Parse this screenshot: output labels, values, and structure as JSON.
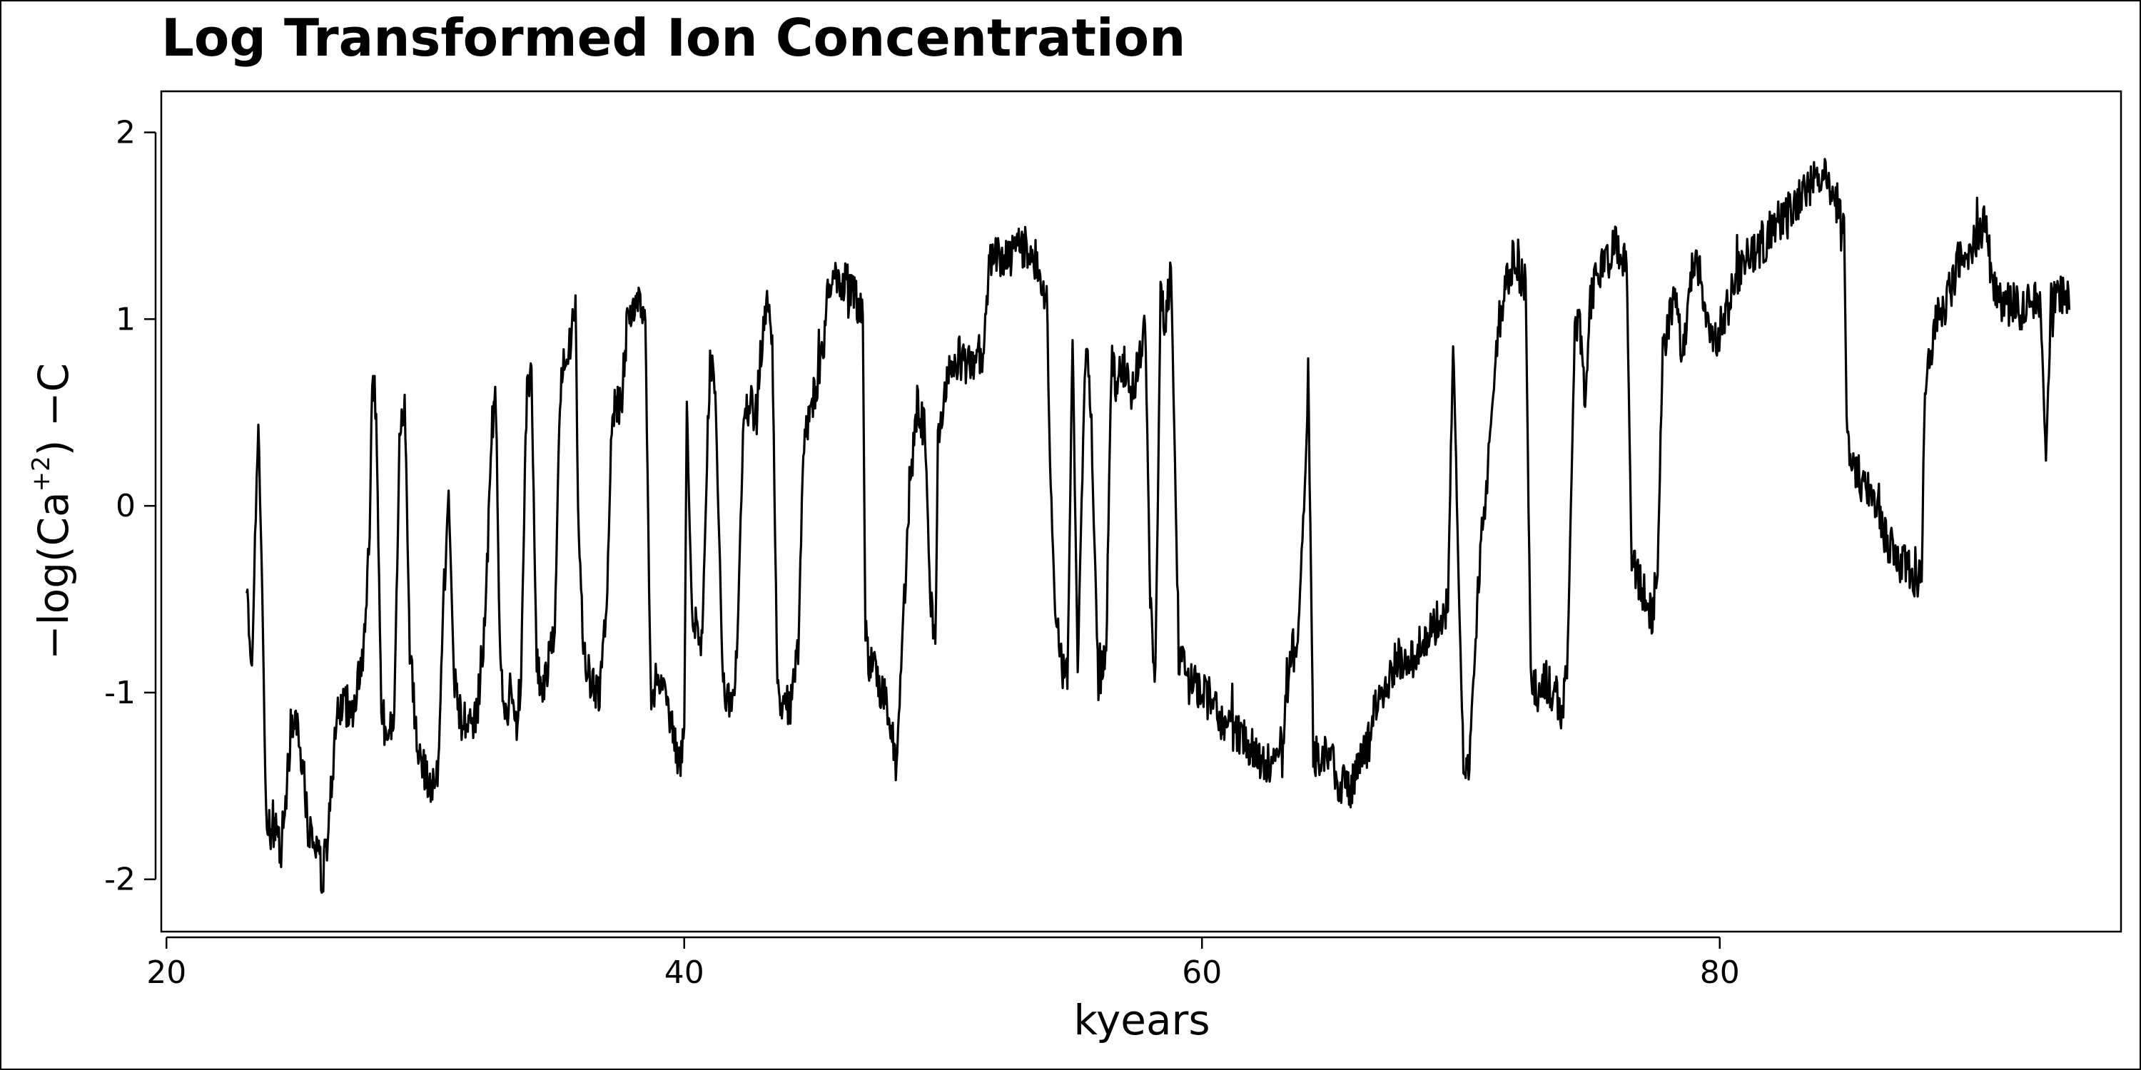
{
  "chart_data": {
    "type": "line",
    "title": "Log Transformed Ion Concentration",
    "xlabel": "kyears",
    "ylabel": {
      "prefix": "−log(Ca",
      "superscript": "+2",
      "suffix": ") −C"
    },
    "xlim": [
      19.8,
      95.5
    ],
    "ylim": [
      -2.28,
      2.22
    ],
    "xticks": [
      20,
      40,
      60,
      80
    ],
    "xtick_labels": [
      "20",
      "40",
      "60",
      "80"
    ],
    "yticks": [
      -2,
      -1,
      0,
      1,
      2
    ],
    "ytick_labels": [
      "-2",
      "-1",
      "0",
      "1",
      "2"
    ],
    "grid": false,
    "line_color": "#000000",
    "series": [
      {
        "name": "-log(Ca+2) - C",
        "anchors": [
          [
            23.1,
            -0.35
          ],
          [
            23.3,
            -0.9
          ],
          [
            23.45,
            0.0
          ],
          [
            23.55,
            0.45
          ],
          [
            23.7,
            -0.5
          ],
          [
            23.85,
            -1.7
          ],
          [
            24.0,
            -1.75
          ],
          [
            24.2,
            -1.7
          ],
          [
            24.4,
            -1.85
          ],
          [
            24.6,
            -1.6
          ],
          [
            24.8,
            -1.2
          ],
          [
            25.0,
            -1.1
          ],
          [
            25.2,
            -1.3
          ],
          [
            25.5,
            -1.75
          ],
          [
            25.8,
            -1.8
          ],
          [
            26.0,
            -2.0
          ],
          [
            26.2,
            -1.8
          ],
          [
            26.5,
            -1.3
          ],
          [
            26.8,
            -1.05
          ],
          [
            27.2,
            -1.1
          ],
          [
            27.5,
            -0.85
          ],
          [
            27.7,
            -0.65
          ],
          [
            27.85,
            -0.15
          ],
          [
            27.95,
            0.7
          ],
          [
            28.1,
            0.5
          ],
          [
            28.3,
            -1.1
          ],
          [
            28.6,
            -1.25
          ],
          [
            28.8,
            -1.1
          ],
          [
            29.0,
            0.3
          ],
          [
            29.2,
            0.6
          ],
          [
            29.4,
            -0.8
          ],
          [
            29.7,
            -1.3
          ],
          [
            30.0,
            -1.45
          ],
          [
            30.3,
            -1.5
          ],
          [
            30.5,
            -1.4
          ],
          [
            30.7,
            -0.5
          ],
          [
            30.9,
            0.05
          ],
          [
            31.1,
            -0.9
          ],
          [
            31.4,
            -1.15
          ],
          [
            31.7,
            -1.2
          ],
          [
            32.0,
            -1.1
          ],
          [
            32.3,
            -0.6
          ],
          [
            32.5,
            0.2
          ],
          [
            32.7,
            0.65
          ],
          [
            32.9,
            -0.9
          ],
          [
            33.1,
            -1.1
          ],
          [
            33.3,
            -1.0
          ],
          [
            33.5,
            -1.2
          ],
          [
            33.7,
            -0.9
          ],
          [
            33.9,
            0.55
          ],
          [
            34.1,
            0.7
          ],
          [
            34.3,
            -0.85
          ],
          [
            34.5,
            -1.0
          ],
          [
            34.8,
            -0.8
          ],
          [
            35.0,
            -0.7
          ],
          [
            35.2,
            0.6
          ],
          [
            35.4,
            0.8
          ],
          [
            35.6,
            0.9
          ],
          [
            35.8,
            1.1
          ],
          [
            35.9,
            0.0
          ],
          [
            36.1,
            -0.8
          ],
          [
            36.4,
            -0.95
          ],
          [
            36.7,
            -1.0
          ],
          [
            37.0,
            -0.6
          ],
          [
            37.2,
            0.5
          ],
          [
            37.4,
            0.55
          ],
          [
            37.6,
            0.6
          ],
          [
            37.8,
            1.0
          ],
          [
            38.0,
            1.05
          ],
          [
            38.3,
            1.1
          ],
          [
            38.5,
            1.0
          ],
          [
            38.7,
            -1.0
          ],
          [
            38.9,
            -0.95
          ],
          [
            39.2,
            -1.0
          ],
          [
            39.5,
            -1.2
          ],
          [
            39.8,
            -1.4
          ],
          [
            40.0,
            -1.2
          ],
          [
            40.1,
            0.55
          ],
          [
            40.3,
            -0.6
          ],
          [
            40.5,
            -0.65
          ],
          [
            40.7,
            -0.7
          ],
          [
            41.0,
            0.8
          ],
          [
            41.2,
            0.6
          ],
          [
            41.5,
            -0.95
          ],
          [
            41.8,
            -1.05
          ],
          [
            42.0,
            -1.0
          ],
          [
            42.3,
            0.5
          ],
          [
            42.5,
            0.55
          ],
          [
            42.8,
            0.5
          ],
          [
            43.0,
            0.9
          ],
          [
            43.2,
            1.05
          ],
          [
            43.4,
            0.9
          ],
          [
            43.6,
            -1.0
          ],
          [
            43.8,
            -1.1
          ],
          [
            44.1,
            -1.05
          ],
          [
            44.4,
            -0.8
          ],
          [
            44.6,
            0.3
          ],
          [
            44.8,
            0.5
          ],
          [
            45.0,
            0.6
          ],
          [
            45.2,
            0.7
          ],
          [
            45.4,
            0.9
          ],
          [
            45.6,
            1.2
          ],
          [
            45.9,
            1.25
          ],
          [
            46.1,
            1.2
          ],
          [
            46.4,
            1.15
          ],
          [
            46.7,
            1.1
          ],
          [
            46.9,
            1.0
          ],
          [
            47.0,
            -0.7
          ],
          [
            47.2,
            -0.85
          ],
          [
            47.5,
            -0.95
          ],
          [
            47.8,
            -1.05
          ],
          [
            48.0,
            -1.15
          ],
          [
            48.2,
            -1.4
          ],
          [
            48.5,
            -0.5
          ],
          [
            48.7,
            0.1
          ],
          [
            49.0,
            0.55
          ],
          [
            49.3,
            0.4
          ],
          [
            49.5,
            -0.5
          ],
          [
            49.7,
            -0.75
          ],
          [
            49.8,
            0.3
          ],
          [
            50.0,
            0.6
          ],
          [
            50.3,
            0.75
          ],
          [
            50.6,
            0.8
          ],
          [
            51.0,
            0.75
          ],
          [
            51.3,
            0.8
          ],
          [
            51.6,
            0.85
          ],
          [
            51.8,
            1.3
          ],
          [
            52.0,
            1.35
          ],
          [
            52.4,
            1.3
          ],
          [
            52.8,
            1.35
          ],
          [
            53.2,
            1.4
          ],
          [
            53.6,
            1.3
          ],
          [
            54.0,
            1.2
          ],
          [
            54.1,
            0.4
          ],
          [
            54.3,
            -0.5
          ],
          [
            54.5,
            -0.8
          ],
          [
            54.8,
            -0.95
          ],
          [
            55.0,
            0.9
          ],
          [
            55.2,
            -0.9
          ],
          [
            55.5,
            0.9
          ],
          [
            55.7,
            0.5
          ],
          [
            56.0,
            -0.95
          ],
          [
            56.3,
            -0.8
          ],
          [
            56.5,
            0.8
          ],
          [
            56.7,
            0.65
          ],
          [
            57.0,
            0.75
          ],
          [
            57.3,
            0.6
          ],
          [
            57.6,
            0.8
          ],
          [
            57.8,
            1.0
          ],
          [
            58.0,
            -0.5
          ],
          [
            58.2,
            -0.9
          ],
          [
            58.4,
            1.1
          ],
          [
            58.6,
            1.0
          ],
          [
            58.8,
            1.3
          ],
          [
            58.9,
            0.6
          ],
          [
            59.1,
            -0.8
          ],
          [
            59.5,
            -0.95
          ],
          [
            60.0,
            -1.0
          ],
          [
            60.4,
            -1.05
          ],
          [
            60.8,
            -1.15
          ],
          [
            61.2,
            -1.2
          ],
          [
            61.6,
            -1.25
          ],
          [
            62.0,
            -1.3
          ],
          [
            62.4,
            -1.4
          ],
          [
            62.8,
            -1.35
          ],
          [
            63.1,
            -1.3
          ],
          [
            63.4,
            -0.8
          ],
          [
            63.7,
            -0.75
          ],
          [
            64.0,
            0.2
          ],
          [
            64.1,
            0.75
          ],
          [
            64.3,
            -1.3
          ],
          [
            64.6,
            -1.4
          ],
          [
            64.9,
            -1.3
          ],
          [
            65.2,
            -1.45
          ],
          [
            65.5,
            -1.5
          ],
          [
            65.8,
            -1.5
          ],
          [
            66.1,
            -1.4
          ],
          [
            66.4,
            -1.3
          ],
          [
            66.7,
            -1.05
          ],
          [
            67.0,
            -1.0
          ],
          [
            67.3,
            -0.9
          ],
          [
            67.6,
            -0.8
          ],
          [
            68.0,
            -0.85
          ],
          [
            68.4,
            -0.75
          ],
          [
            68.8,
            -0.7
          ],
          [
            69.2,
            -0.6
          ],
          [
            69.5,
            -0.55
          ],
          [
            69.7,
            0.9
          ],
          [
            69.9,
            -0.3
          ],
          [
            70.1,
            -1.35
          ],
          [
            70.3,
            -1.45
          ],
          [
            70.6,
            -0.6
          ],
          [
            70.9,
            0.0
          ],
          [
            71.1,
            0.3
          ],
          [
            71.4,
            0.9
          ],
          [
            71.7,
            1.2
          ],
          [
            72.0,
            1.3
          ],
          [
            72.3,
            1.25
          ],
          [
            72.5,
            1.2
          ],
          [
            72.7,
            -0.9
          ],
          [
            73.0,
            -1.0
          ],
          [
            73.3,
            -0.95
          ],
          [
            73.6,
            -1.0
          ],
          [
            73.9,
            -1.1
          ],
          [
            74.1,
            -0.9
          ],
          [
            74.4,
            0.9
          ],
          [
            74.6,
            0.95
          ],
          [
            74.8,
            0.5
          ],
          [
            75.0,
            1.1
          ],
          [
            75.2,
            1.2
          ],
          [
            75.6,
            1.3
          ],
          [
            75.9,
            1.4
          ],
          [
            76.2,
            1.35
          ],
          [
            76.4,
            1.3
          ],
          [
            76.6,
            -0.3
          ],
          [
            76.9,
            -0.4
          ],
          [
            77.2,
            -0.5
          ],
          [
            77.4,
            -0.6
          ],
          [
            77.6,
            -0.3
          ],
          [
            77.8,
            0.8
          ],
          [
            78.0,
            1.0
          ],
          [
            78.3,
            1.1
          ],
          [
            78.6,
            0.8
          ],
          [
            78.9,
            1.25
          ],
          [
            79.2,
            1.3
          ],
          [
            79.5,
            1.0
          ],
          [
            79.8,
            0.85
          ],
          [
            80.1,
            1.0
          ],
          [
            80.4,
            1.1
          ],
          [
            80.7,
            1.25
          ],
          [
            81.0,
            1.3
          ],
          [
            81.3,
            1.35
          ],
          [
            81.6,
            1.4
          ],
          [
            81.9,
            1.45
          ],
          [
            82.2,
            1.5
          ],
          [
            82.5,
            1.55
          ],
          [
            82.8,
            1.6
          ],
          [
            83.1,
            1.65
          ],
          [
            83.4,
            1.7
          ],
          [
            83.7,
            1.8
          ],
          [
            84.0,
            1.75
          ],
          [
            84.3,
            1.7
          ],
          [
            84.6,
            1.6
          ],
          [
            84.8,
            1.5
          ],
          [
            84.9,
            0.5
          ],
          [
            85.1,
            0.2
          ],
          [
            85.4,
            0.15
          ],
          [
            85.7,
            0.1
          ],
          [
            86.0,
            0.0
          ],
          [
            86.3,
            -0.15
          ],
          [
            86.6,
            -0.2
          ],
          [
            87.0,
            -0.3
          ],
          [
            87.4,
            -0.35
          ],
          [
            87.8,
            -0.4
          ],
          [
            87.9,
            0.5
          ],
          [
            88.1,
            0.8
          ],
          [
            88.4,
            1.0
          ],
          [
            88.8,
            1.1
          ],
          [
            89.2,
            1.3
          ],
          [
            89.6,
            1.35
          ],
          [
            90.0,
            1.45
          ],
          [
            90.3,
            1.5
          ],
          [
            90.5,
            1.2
          ],
          [
            90.8,
            1.1
          ],
          [
            91.2,
            1.1
          ],
          [
            91.6,
            1.05
          ],
          [
            92.0,
            1.1
          ],
          [
            92.4,
            1.05
          ],
          [
            92.6,
            0.25
          ],
          [
            92.8,
            1.1
          ],
          [
            93.2,
            1.15
          ],
          [
            93.5,
            1.05
          ]
        ]
      }
    ],
    "noise_seed": 1234,
    "noise_amplitude": 0.12
  }
}
